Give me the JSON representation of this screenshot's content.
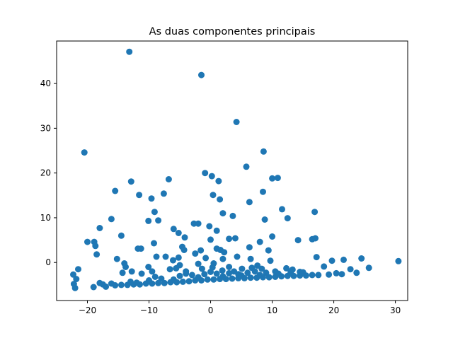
{
  "chart_data": {
    "type": "scatter",
    "title": "As duas componentes principais",
    "xlabel": "",
    "ylabel": "",
    "xlim": [
      -25,
      32
    ],
    "ylim": [
      -8.5,
      49.5
    ],
    "xticks": [
      -20,
      -10,
      0,
      10,
      20,
      30
    ],
    "yticks": [
      0,
      10,
      20,
      30,
      40
    ],
    "grid": false,
    "marker_color": "#1f77b4",
    "series": [
      {
        "points": [
          [
            -13.2,
            47.1
          ],
          [
            -1.5,
            41.9
          ],
          [
            4.2,
            31.4
          ],
          [
            -20.5,
            24.6
          ],
          [
            8.6,
            24.8
          ],
          [
            5.8,
            21.4
          ],
          [
            -0.9,
            20.0
          ],
          [
            0.2,
            19.3
          ],
          [
            1.3,
            18.2
          ],
          [
            -12.9,
            18.1
          ],
          [
            -6.8,
            18.6
          ],
          [
            10.0,
            18.8
          ],
          [
            10.9,
            18.9
          ],
          [
            -15.5,
            16.0
          ],
          [
            -11.6,
            15.1
          ],
          [
            -7.6,
            15.4
          ],
          [
            0.4,
            15.1
          ],
          [
            1.5,
            14.1
          ],
          [
            8.5,
            15.8
          ],
          [
            -9.6,
            14.3
          ],
          [
            6.3,
            13.5
          ],
          [
            11.6,
            11.9
          ],
          [
            -9.1,
            11.3
          ],
          [
            2.0,
            11.0
          ],
          [
            16.9,
            11.3
          ],
          [
            -16.1,
            9.7
          ],
          [
            -10.1,
            9.3
          ],
          [
            -8.5,
            9.4
          ],
          [
            3.6,
            10.4
          ],
          [
            8.8,
            9.6
          ],
          [
            12.5,
            9.9
          ],
          [
            -18.0,
            7.7
          ],
          [
            -6.0,
            7.5
          ],
          [
            -2.7,
            8.7
          ],
          [
            -2.0,
            8.7
          ],
          [
            -0.2,
            8.1
          ],
          [
            1.0,
            7.1
          ],
          [
            -14.5,
            6.0
          ],
          [
            -5.2,
            6.6
          ],
          [
            -4.2,
            5.6
          ],
          [
            0.0,
            5.1
          ],
          [
            3.0,
            5.3
          ],
          [
            4.0,
            5.4
          ],
          [
            10.0,
            5.8
          ],
          [
            14.2,
            5.0
          ],
          [
            16.5,
            5.2
          ],
          [
            17.0,
            5.4
          ],
          [
            -20.0,
            4.6
          ],
          [
            -18.9,
            4.6
          ],
          [
            -18.7,
            3.7
          ],
          [
            -18.5,
            1.8
          ],
          [
            -11.8,
            3.1
          ],
          [
            -11.3,
            3.1
          ],
          [
            -9.2,
            4.3
          ],
          [
            -4.6,
            3.5
          ],
          [
            -4.3,
            2.8
          ],
          [
            -1.6,
            2.7
          ],
          [
            1.0,
            3.1
          ],
          [
            1.6,
            2.8
          ],
          [
            2.2,
            2.3
          ],
          [
            6.3,
            3.4
          ],
          [
            8.0,
            4.6
          ],
          [
            9.4,
            2.7
          ],
          [
            -15.2,
            0.8
          ],
          [
            -14.0,
            -0.2
          ],
          [
            -10.1,
            -1.0
          ],
          [
            -8.8,
            1.3
          ],
          [
            -7.3,
            1.3
          ],
          [
            -6.1,
            0.5
          ],
          [
            -5.2,
            1.1
          ],
          [
            -5.0,
            -0.6
          ],
          [
            -2.5,
            2.0
          ],
          [
            -2.0,
            -0.3
          ],
          [
            -0.8,
            1.0
          ],
          [
            0.5,
            -0.2
          ],
          [
            2.0,
            0.8
          ],
          [
            4.3,
            1.3
          ],
          [
            6.5,
            0.8
          ],
          [
            7.6,
            -0.7
          ],
          [
            9.7,
            0.4
          ],
          [
            17.2,
            1.2
          ],
          [
            19.7,
            0.4
          ],
          [
            21.6,
            0.6
          ],
          [
            24.5,
            0.9
          ],
          [
            30.5,
            0.3
          ],
          [
            -21.5,
            -1.5
          ],
          [
            -22.3,
            -2.7
          ],
          [
            -21.8,
            -3.7
          ],
          [
            -22.2,
            -4.8
          ],
          [
            -22.0,
            -5.7
          ],
          [
            -13.8,
            -1.0
          ],
          [
            -12.8,
            -2.0
          ],
          [
            -11.2,
            -2.5
          ],
          [
            -14.3,
            -2.3
          ],
          [
            -9.5,
            -2.0
          ],
          [
            -6.6,
            -1.5
          ],
          [
            -5.6,
            -1.3
          ],
          [
            -4.0,
            -2.0
          ],
          [
            -1.4,
            -1.4
          ],
          [
            0.3,
            -1.1
          ],
          [
            1.9,
            -1.8
          ],
          [
            3.0,
            -1.0
          ],
          [
            5.1,
            -1.4
          ],
          [
            6.7,
            -1.2
          ],
          [
            8.3,
            -1.4
          ],
          [
            12.3,
            -1.3
          ],
          [
            13.3,
            -1.6
          ],
          [
            14.5,
            -2.1
          ],
          [
            18.4,
            -0.9
          ],
          [
            20.4,
            -2.4
          ],
          [
            22.7,
            -1.5
          ],
          [
            23.7,
            -2.3
          ],
          [
            25.7,
            -1.2
          ],
          [
            21.3,
            -2.6
          ],
          [
            19.2,
            -2.7
          ],
          [
            -19.0,
            -5.5
          ],
          [
            -18.0,
            -4.6
          ],
          [
            -17.0,
            -5.4
          ],
          [
            -16.1,
            -4.7
          ],
          [
            -15.5,
            -5.1
          ],
          [
            -14.5,
            -5.0
          ],
          [
            -13.5,
            -5.0
          ],
          [
            -12.5,
            -4.9
          ],
          [
            -11.5,
            -4.9
          ],
          [
            -10.5,
            -4.7
          ],
          [
            -9.5,
            -4.7
          ],
          [
            -8.5,
            -4.6
          ],
          [
            -7.5,
            -4.6
          ],
          [
            -6.5,
            -4.4
          ],
          [
            -5.5,
            -4.4
          ],
          [
            -4.5,
            -4.3
          ],
          [
            -3.5,
            -4.2
          ],
          [
            -2.5,
            -4.0
          ],
          [
            -1.5,
            -4.0
          ],
          [
            -0.5,
            -3.8
          ],
          [
            0.5,
            -3.8
          ],
          [
            1.5,
            -3.7
          ],
          [
            2.5,
            -3.7
          ],
          [
            3.5,
            -3.6
          ],
          [
            4.5,
            -3.5
          ],
          [
            5.5,
            -3.5
          ],
          [
            6.5,
            -3.4
          ],
          [
            7.5,
            -3.4
          ],
          [
            8.5,
            -3.3
          ],
          [
            9.5,
            -3.3
          ],
          [
            10.5,
            -3.2
          ],
          [
            11.5,
            -3.1
          ],
          [
            12.5,
            -3.0
          ],
          [
            13.5,
            -3.0
          ],
          [
            14.5,
            -2.9
          ],
          [
            15.5,
            -2.9
          ],
          [
            16.5,
            -2.8
          ],
          [
            17.5,
            -2.8
          ],
          [
            -13.0,
            -4.3
          ],
          [
            -10.0,
            -4.0
          ],
          [
            -8.0,
            -3.6
          ],
          [
            -5.0,
            -3.0
          ],
          [
            -3.0,
            -2.8
          ],
          [
            -1.0,
            -2.6
          ],
          [
            1.0,
            -2.5
          ],
          [
            3.0,
            -2.4
          ],
          [
            4.5,
            -2.6
          ],
          [
            6.0,
            -2.3
          ],
          [
            7.2,
            -2.0
          ],
          [
            9.0,
            -2.3
          ],
          [
            11.0,
            -2.5
          ],
          [
            13.0,
            -2.2
          ],
          [
            15.0,
            -2.2
          ],
          [
            -17.5,
            -4.9
          ],
          [
            -12.0,
            -4.5
          ],
          [
            -6.0,
            -3.8
          ],
          [
            -2.0,
            -3.3
          ],
          [
            2.0,
            -3.1
          ],
          [
            5.0,
            -2.9
          ],
          [
            8.0,
            -2.8
          ],
          [
            -9.0,
            -3.2
          ],
          [
            -4.0,
            -2.5
          ],
          [
            0.0,
            -2.1
          ],
          [
            3.8,
            -2.0
          ],
          [
            10.5,
            -2.0
          ]
        ]
      }
    ]
  }
}
